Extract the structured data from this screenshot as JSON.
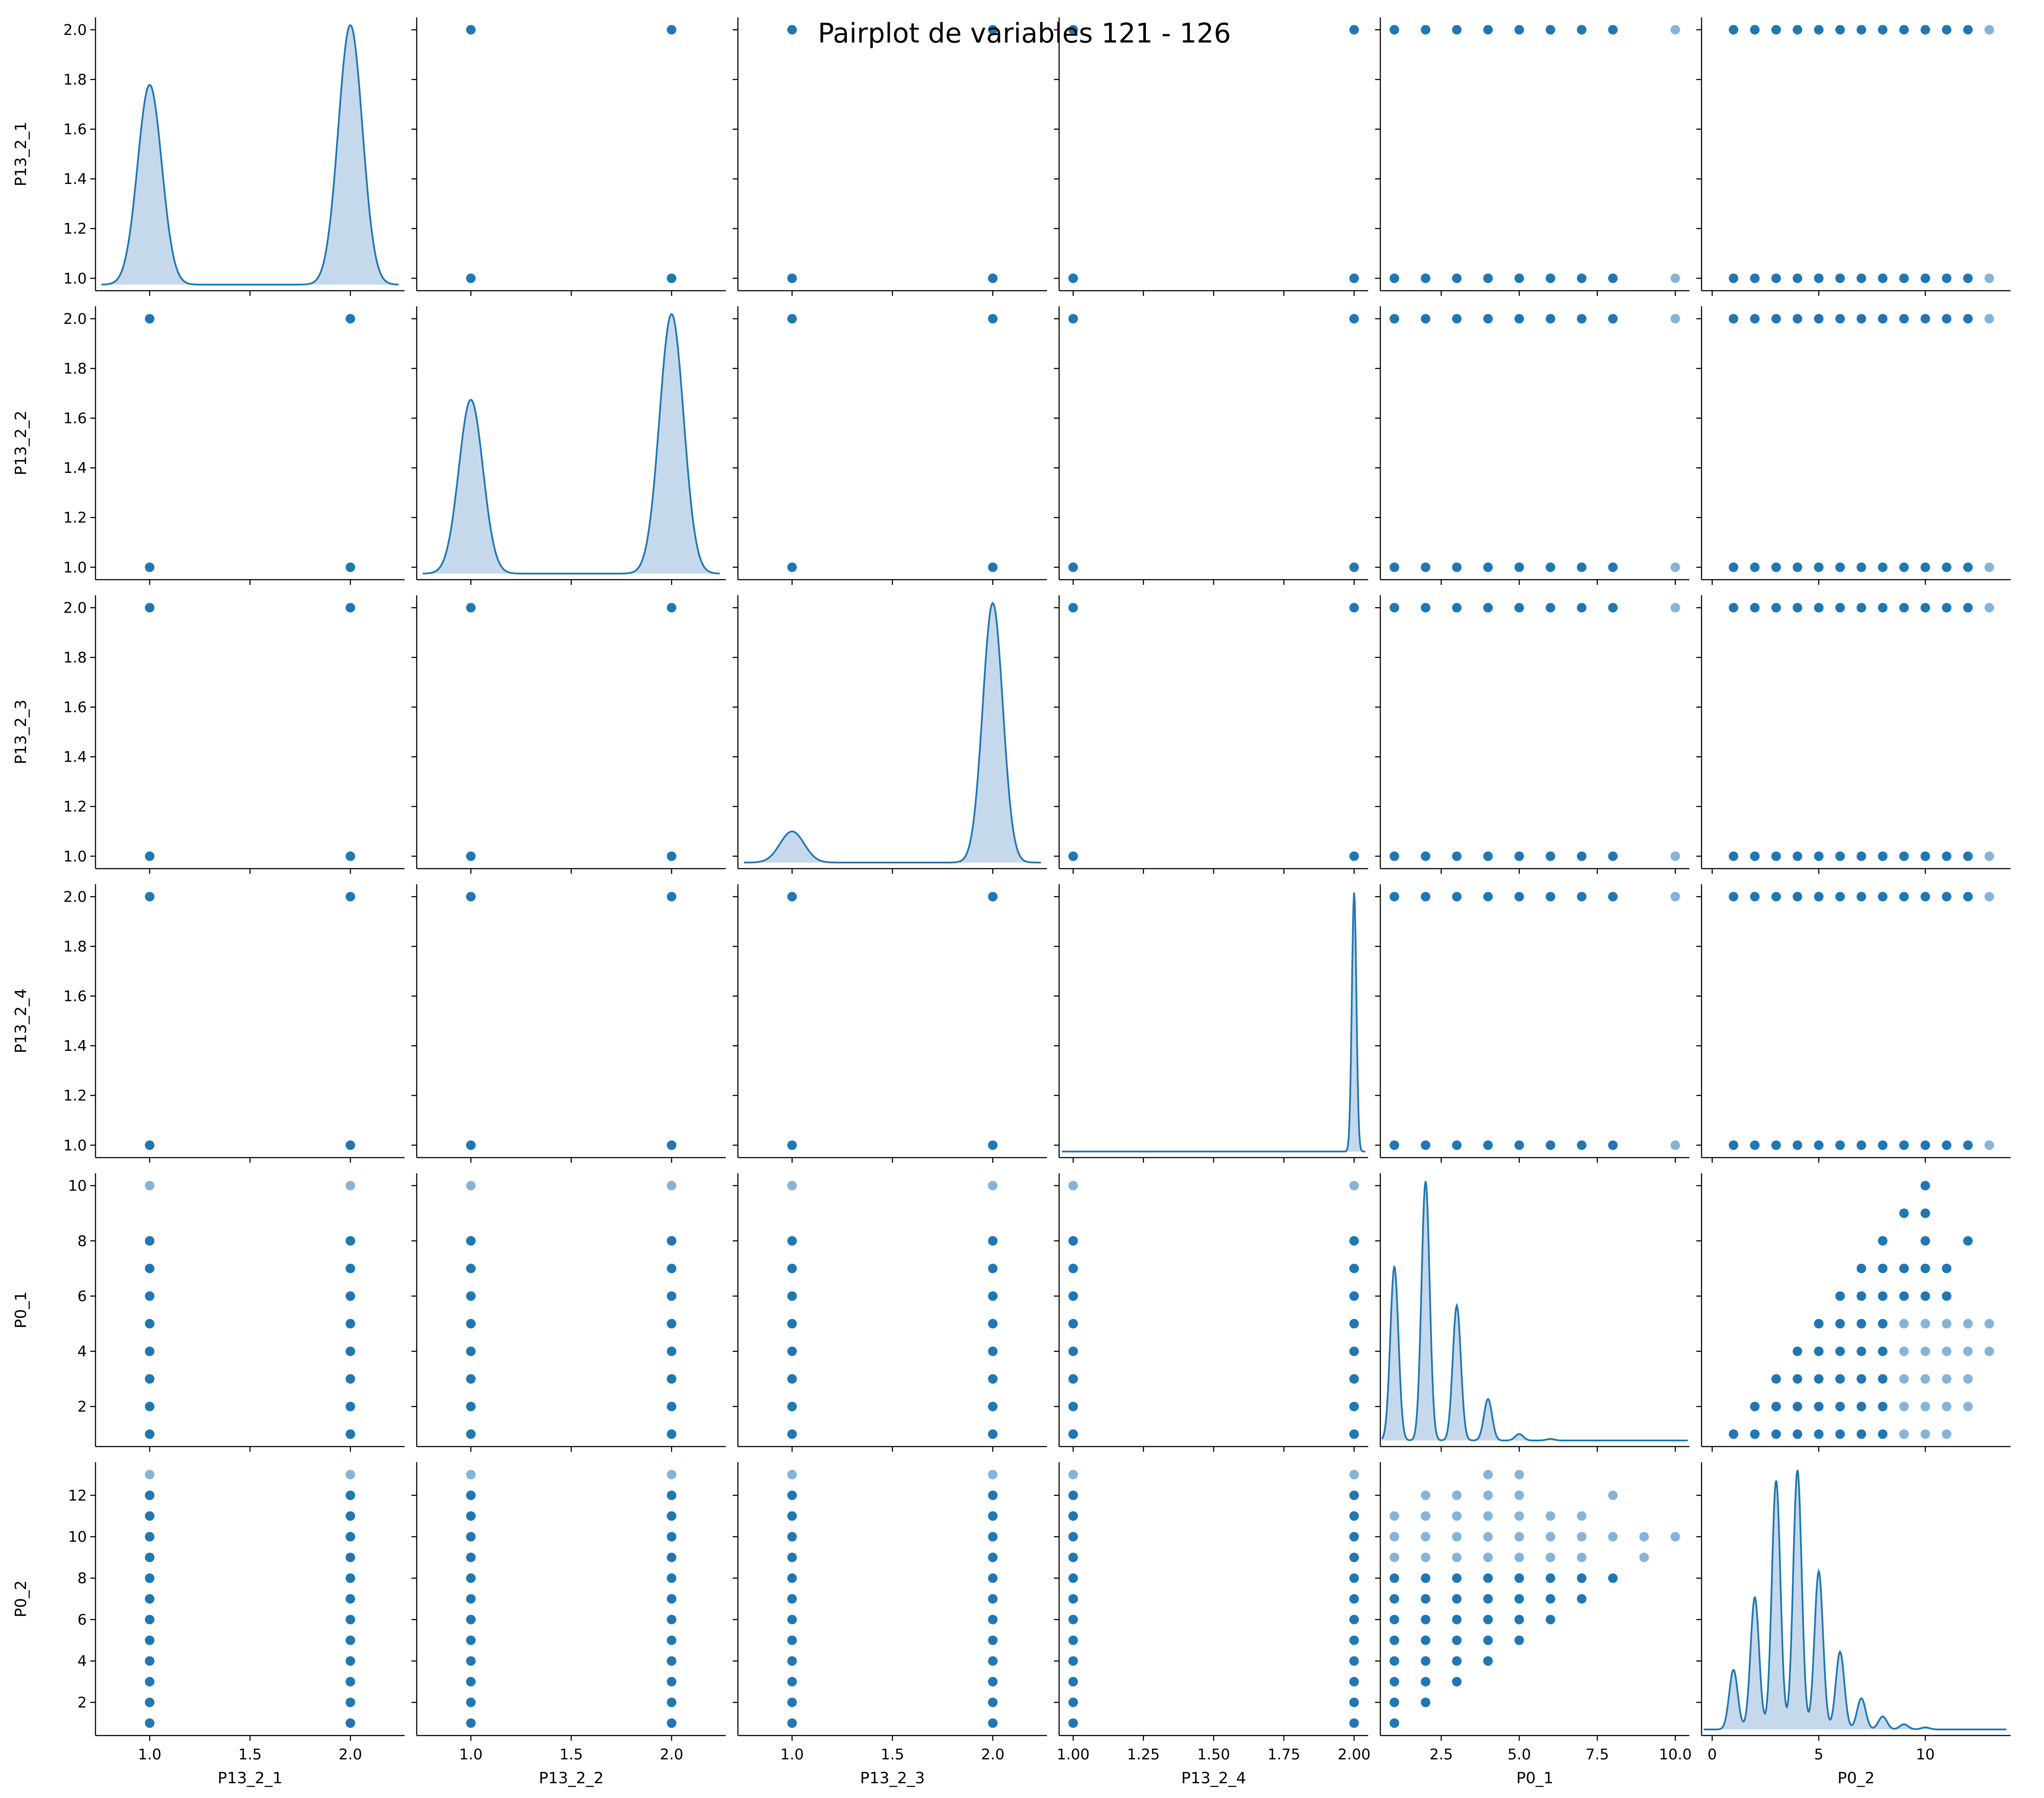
{
  "title": "Pairplot de variables 121 - 126",
  "colors": {
    "point": "#1f77b4",
    "point_faint": "#86b4d8",
    "kde_line": "#1f77b4",
    "kde_fill": "#c6d9ec",
    "axis": "#000000"
  },
  "chart_data": {
    "type": "pairplot",
    "variables": [
      "P13_2_1",
      "P13_2_2",
      "P13_2_3",
      "P13_2_4",
      "P0_1",
      "P0_2"
    ],
    "axes": {
      "P13_2_1": {
        "range": [
          0.73,
          2.27
        ],
        "ticks": [
          1.0,
          1.5,
          2.0
        ],
        "tick_labels": [
          "1.0",
          "1.5",
          "2.0"
        ]
      },
      "P13_2_2": {
        "range": [
          0.73,
          2.27
        ],
        "ticks": [
          1.0,
          1.5,
          2.0
        ],
        "tick_labels": [
          "1.0",
          "1.5",
          "2.0"
        ]
      },
      "P13_2_3": {
        "range": [
          0.73,
          2.27
        ],
        "ticks": [
          1.0,
          1.5,
          2.0
        ],
        "tick_labels": [
          "1.0",
          "1.5",
          "2.0"
        ]
      },
      "P13_2_4": {
        "range": [
          0.95,
          2.05
        ],
        "ticks": [
          1.0,
          1.25,
          1.5,
          1.75,
          2.0
        ],
        "tick_labels": [
          "1.00",
          "1.25",
          "1.50",
          "1.75",
          "2.00"
        ]
      },
      "P0_1": {
        "range": [
          0.55,
          10.45
        ],
        "ticks": [
          2.5,
          5.0,
          7.5,
          10.0
        ],
        "tick_labels": [
          "2.5",
          "5.0",
          "7.5",
          "10.0"
        ]
      },
      "P0_2": {
        "range": [
          -0.5,
          14.0
        ],
        "ticks": [
          0,
          5,
          10
        ],
        "tick_labels": [
          "0",
          "5",
          "10"
        ]
      }
    },
    "row_axes": {
      "P13_2_1": {
        "range": [
          0.95,
          2.05
        ],
        "ticks": [
          1.0,
          1.2,
          1.4,
          1.6,
          1.8,
          2.0
        ],
        "tick_labels": [
          "1.0",
          "1.2",
          "1.4",
          "1.6",
          "1.8",
          "2.0"
        ]
      },
      "P13_2_2": {
        "range": [
          0.95,
          2.05
        ],
        "ticks": [
          1.0,
          1.2,
          1.4,
          1.6,
          1.8,
          2.0
        ],
        "tick_labels": [
          "1.0",
          "1.2",
          "1.4",
          "1.6",
          "1.8",
          "2.0"
        ]
      },
      "P13_2_3": {
        "range": [
          0.95,
          2.05
        ],
        "ticks": [
          1.0,
          1.2,
          1.4,
          1.6,
          1.8,
          2.0
        ],
        "tick_labels": [
          "1.0",
          "1.2",
          "1.4",
          "1.6",
          "1.8",
          "2.0"
        ]
      },
      "P13_2_4": {
        "range": [
          0.95,
          2.05
        ],
        "ticks": [
          1.0,
          1.2,
          1.4,
          1.6,
          1.8,
          2.0
        ],
        "tick_labels": [
          "1.0",
          "1.2",
          "1.4",
          "1.6",
          "1.8",
          "2.0"
        ]
      },
      "P0_1": {
        "range": [
          0.55,
          10.45
        ],
        "ticks": [
          2,
          4,
          6,
          8,
          10
        ],
        "tick_labels": [
          "2",
          "4",
          "6",
          "8",
          "10"
        ]
      },
      "P0_2": {
        "range": [
          0.4,
          13.6
        ],
        "ticks": [
          2,
          4,
          6,
          8,
          10,
          12
        ],
        "tick_labels": [
          "2",
          "4",
          "6",
          "8",
          "10",
          "12"
        ]
      }
    },
    "kde": {
      "P13_2_1": {
        "x_range": [
          0.76,
          2.24
        ],
        "modes": [
          {
            "x": 1.0,
            "rel_height": 0.77,
            "width": 0.06
          },
          {
            "x": 2.0,
            "rel_height": 1.0,
            "width": 0.06
          }
        ]
      },
      "P13_2_2": {
        "x_range": [
          0.76,
          2.24
        ],
        "modes": [
          {
            "x": 1.0,
            "rel_height": 0.67,
            "width": 0.06
          },
          {
            "x": 2.0,
            "rel_height": 1.0,
            "width": 0.06
          }
        ]
      },
      "P13_2_3": {
        "x_range": [
          0.76,
          2.24
        ],
        "modes": [
          {
            "x": 1.0,
            "rel_height": 0.12,
            "width": 0.06
          },
          {
            "x": 2.0,
            "rel_height": 1.0,
            "width": 0.05
          }
        ]
      },
      "P13_2_4": {
        "x_range": [
          0.96,
          2.04
        ],
        "modes": [
          {
            "x": 2.0,
            "rel_height": 1.0,
            "width": 0.008
          }
        ]
      },
      "P0_1": {
        "x_range": [
          0.6,
          10.4
        ],
        "modes": [
          {
            "x": 1,
            "rel_height": 0.67,
            "width": 0.13
          },
          {
            "x": 2,
            "rel_height": 1.0,
            "width": 0.13
          },
          {
            "x": 3,
            "rel_height": 0.52,
            "width": 0.13
          },
          {
            "x": 4,
            "rel_height": 0.16,
            "width": 0.13
          },
          {
            "x": 5,
            "rel_height": 0.025,
            "width": 0.13
          },
          {
            "x": 6,
            "rel_height": 0.006,
            "width": 0.13
          }
        ]
      },
      "P0_2": {
        "x_range": [
          -0.4,
          13.8
        ],
        "modes": [
          {
            "x": 1,
            "rel_height": 0.23,
            "width": 0.2
          },
          {
            "x": 2,
            "rel_height": 0.51,
            "width": 0.2
          },
          {
            "x": 3,
            "rel_height": 0.96,
            "width": 0.2
          },
          {
            "x": 4,
            "rel_height": 1.0,
            "width": 0.2
          },
          {
            "x": 5,
            "rel_height": 0.61,
            "width": 0.2
          },
          {
            "x": 6,
            "rel_height": 0.3,
            "width": 0.2
          },
          {
            "x": 7,
            "rel_height": 0.12,
            "width": 0.2
          },
          {
            "x": 8,
            "rel_height": 0.05,
            "width": 0.2
          },
          {
            "x": 9,
            "rel_height": 0.02,
            "width": 0.2
          },
          {
            "x": 10,
            "rel_height": 0.008,
            "width": 0.2
          }
        ]
      }
    },
    "scatter": {
      "P13_2_1": {
        "values": [
          1,
          2
        ],
        "faint": []
      },
      "P13_2_2": {
        "values": [
          1,
          2
        ],
        "faint": []
      },
      "P13_2_3": {
        "values": [
          1,
          2
        ],
        "faint": []
      },
      "P13_2_4": {
        "values": [
          1,
          2
        ],
        "faint": []
      },
      "P0_1": {
        "values": [
          1,
          2,
          3,
          4,
          5,
          6,
          7,
          8,
          10
        ],
        "faint": [
          10
        ]
      },
      "P0_2": {
        "values": [
          1,
          2,
          3,
          4,
          5,
          6,
          7,
          8,
          9,
          10,
          11,
          12,
          13
        ],
        "faint": [
          13
        ]
      },
      "P0_1_vs_P0_2": [
        [
          1,
          1
        ],
        [
          2,
          1
        ],
        [
          3,
          1
        ],
        [
          4,
          1
        ],
        [
          5,
          1
        ],
        [
          6,
          1
        ],
        [
          7,
          1
        ],
        [
          8,
          1
        ],
        [
          9,
          1
        ],
        [
          10,
          1
        ],
        [
          11,
          1
        ],
        [
          2,
          2
        ],
        [
          3,
          2
        ],
        [
          4,
          2
        ],
        [
          5,
          2
        ],
        [
          6,
          2
        ],
        [
          7,
          2
        ],
        [
          8,
          2
        ],
        [
          9,
          2
        ],
        [
          10,
          2
        ],
        [
          11,
          2
        ],
        [
          12,
          2
        ],
        [
          3,
          3
        ],
        [
          4,
          3
        ],
        [
          5,
          3
        ],
        [
          6,
          3
        ],
        [
          7,
          3
        ],
        [
          8,
          3
        ],
        [
          9,
          3
        ],
        [
          10,
          3
        ],
        [
          11,
          3
        ],
        [
          12,
          3
        ],
        [
          4,
          4
        ],
        [
          5,
          4
        ],
        [
          6,
          4
        ],
        [
          7,
          4
        ],
        [
          8,
          4
        ],
        [
          9,
          4
        ],
        [
          10,
          4
        ],
        [
          11,
          4
        ],
        [
          12,
          4
        ],
        [
          13,
          4
        ],
        [
          5,
          5
        ],
        [
          6,
          5
        ],
        [
          7,
          5
        ],
        [
          8,
          5
        ],
        [
          9,
          5
        ],
        [
          10,
          5
        ],
        [
          11,
          5
        ],
        [
          12,
          5
        ],
        [
          13,
          5
        ],
        [
          6,
          6
        ],
        [
          7,
          6
        ],
        [
          8,
          6
        ],
        [
          9,
          6
        ],
        [
          10,
          6
        ],
        [
          11,
          6
        ],
        [
          7,
          7
        ],
        [
          8,
          7
        ],
        [
          9,
          7
        ],
        [
          10,
          7
        ],
        [
          11,
          7
        ],
        [
          8,
          8
        ],
        [
          10,
          8
        ],
        [
          12,
          8
        ],
        [
          9,
          9
        ],
        [
          10,
          9
        ],
        [
          10,
          10
        ]
      ]
    }
  }
}
